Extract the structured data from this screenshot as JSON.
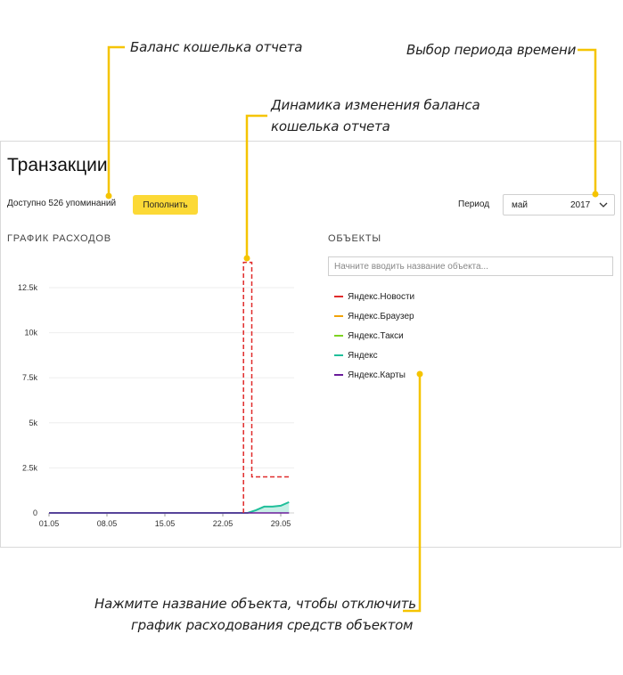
{
  "annotations": {
    "balance": "Баланс кошелька отчета",
    "period": "Выбор периода времени",
    "dynamics_line1": "Динамика изменения баланса",
    "dynamics_line2": "кошелька отчета",
    "objects_line1": "Нажмите название объекта, чтобы отключить",
    "objects_line2": "график расходования средств объектом"
  },
  "page": {
    "title": "Транзакции",
    "balance_text": "Доступно 526 упоминаний",
    "topup_label": "Пополнить",
    "period_label": "Период",
    "period_month": "май",
    "period_year": "2017",
    "expenses_title": "ГРАФИК РАСХОДОВ",
    "objects_title": "ОБЪЕКТЫ",
    "search_placeholder": "Начните вводить название объекта..."
  },
  "legend": [
    {
      "label": "Яндекс.Новости",
      "color": "#e02b2b"
    },
    {
      "label": "Яндекс.Браузер",
      "color": "#f0a30a"
    },
    {
      "label": "Яндекс.Такси",
      "color": "#7ed321"
    },
    {
      "label": "Яндекс",
      "color": "#1fbf9a"
    },
    {
      "label": "Яндекс.Карты",
      "color": "#6a1b9a"
    }
  ],
  "colors": {
    "annotation_accent": "#f5c400",
    "button": "#fcd936",
    "balance_line": "#e02b2b",
    "series_area": "#1fbf9a"
  },
  "chart_data": {
    "type": "line",
    "title": "",
    "xlabel": "",
    "ylabel": "",
    "x_ticks": [
      "01.05",
      "08.05",
      "15.05",
      "22.05",
      "29.05"
    ],
    "y_ticks": [
      "0",
      "2.5k",
      "5k",
      "7.5k",
      "10k",
      "12.5k"
    ],
    "ylim": [
      0,
      14000
    ],
    "xlim": [
      1,
      31
    ],
    "grid": true,
    "series": [
      {
        "name": "Яндекс",
        "kind": "area",
        "color": "#1fbf9a",
        "x": [
          1,
          25,
          26,
          27,
          28,
          29,
          30
        ],
        "y": [
          0,
          0,
          150,
          350,
          350,
          400,
          600
        ]
      },
      {
        "name": "Яндекс.Карты",
        "kind": "line",
        "color": "#6a1b9a",
        "x": [
          1,
          30
        ],
        "y": [
          0,
          0
        ]
      }
    ],
    "balance_line": {
      "kind": "dashed",
      "color": "#e02b2b",
      "x": [
        24.5,
        24.5,
        25.5,
        25.5,
        30
      ],
      "y": [
        0,
        13900,
        13900,
        2000,
        2000
      ]
    }
  }
}
